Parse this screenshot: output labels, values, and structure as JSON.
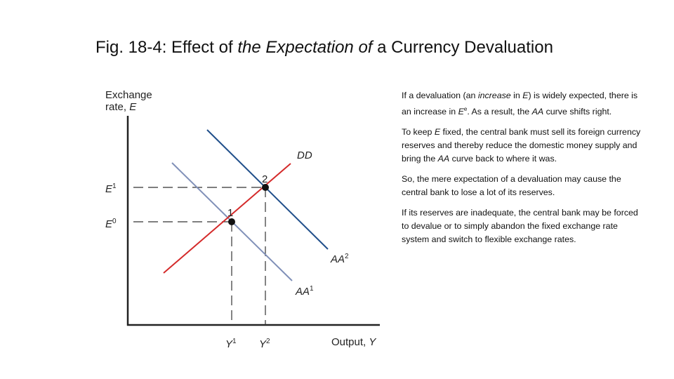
{
  "title": [
    "Fig. 18-4: Effect of ",
    "the Expectation of",
    " a Currency Devaluation"
  ],
  "diagram": {
    "y_axis_label": [
      "Exchange",
      "rate, ",
      "E"
    ],
    "x_axis_label": [
      "Output, ",
      "Y"
    ],
    "e1": {
      "base": "E",
      "sup": "1"
    },
    "e0": {
      "base": "E",
      "sup": "0"
    },
    "y1": {
      "base": "Y",
      "sup": "1"
    },
    "y2": {
      "base": "Y",
      "sup": "2"
    },
    "dd": "DD",
    "aa1": {
      "base": "AA",
      "sup": "1"
    },
    "aa2": {
      "base": "AA",
      "sup": "2"
    },
    "point1": "1",
    "point2": "2"
  },
  "paragraphs": [
    [
      "If a devaluation (an ",
      "increase",
      " in ",
      "E",
      ") is widely expected, there is an increase in ",
      "E",
      "e",
      ". As a result, the ",
      "AA",
      " curve shifts right."
    ],
    [
      "To keep ",
      "E",
      " fixed, the central bank  must sell its foreign currency reserves and thereby reduce the domestic money supply and bring the ",
      "AA",
      " curve back to where it was."
    ],
    [
      "So, the mere expectation of a devaluation may cause the central bank to lose a lot of its reserves."
    ],
    [
      "If its reserves are inadequate, the central bank may be forced to devalue or to simply abandon the fixed exchange rate system and switch to flexible exchange rates."
    ]
  ]
}
